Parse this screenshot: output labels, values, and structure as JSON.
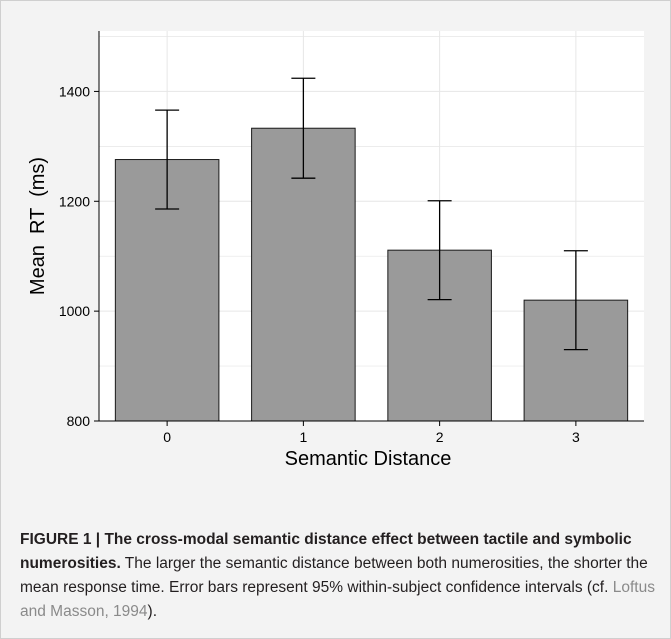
{
  "chart_data": {
    "type": "bar",
    "categories": [
      "0",
      "1",
      "2",
      "3"
    ],
    "values": [
      1276,
      1333,
      1111,
      1020
    ],
    "error_bars": [
      {
        "low": 1186,
        "high": 1366
      },
      {
        "low": 1242,
        "high": 1424
      },
      {
        "low": 1021,
        "high": 1201
      },
      {
        "low": 930,
        "high": 1110
      }
    ],
    "title": "",
    "xlabel": "Semantic Distance",
    "ylabel": "Mean  RT  (ms)",
    "ylim": [
      800,
      1510
    ],
    "yticks": [
      800,
      1000,
      1200,
      1400
    ],
    "grid": true,
    "bar_color": "#9a9a9a",
    "plot_background": "#ffffff",
    "grid_color": "#e6e6e6"
  },
  "caption": {
    "label": "FIGURE 1 | ",
    "title": "The cross-modal semantic distance effect between tactile and symbolic numerosities.",
    "text": " The larger the semantic distance between both numerosities, the shorter the mean response time. Error bars represent 95% within-subject confidence intervals (cf. ",
    "citation": "Loftus and Masson, 1994",
    "text_end": ")."
  }
}
